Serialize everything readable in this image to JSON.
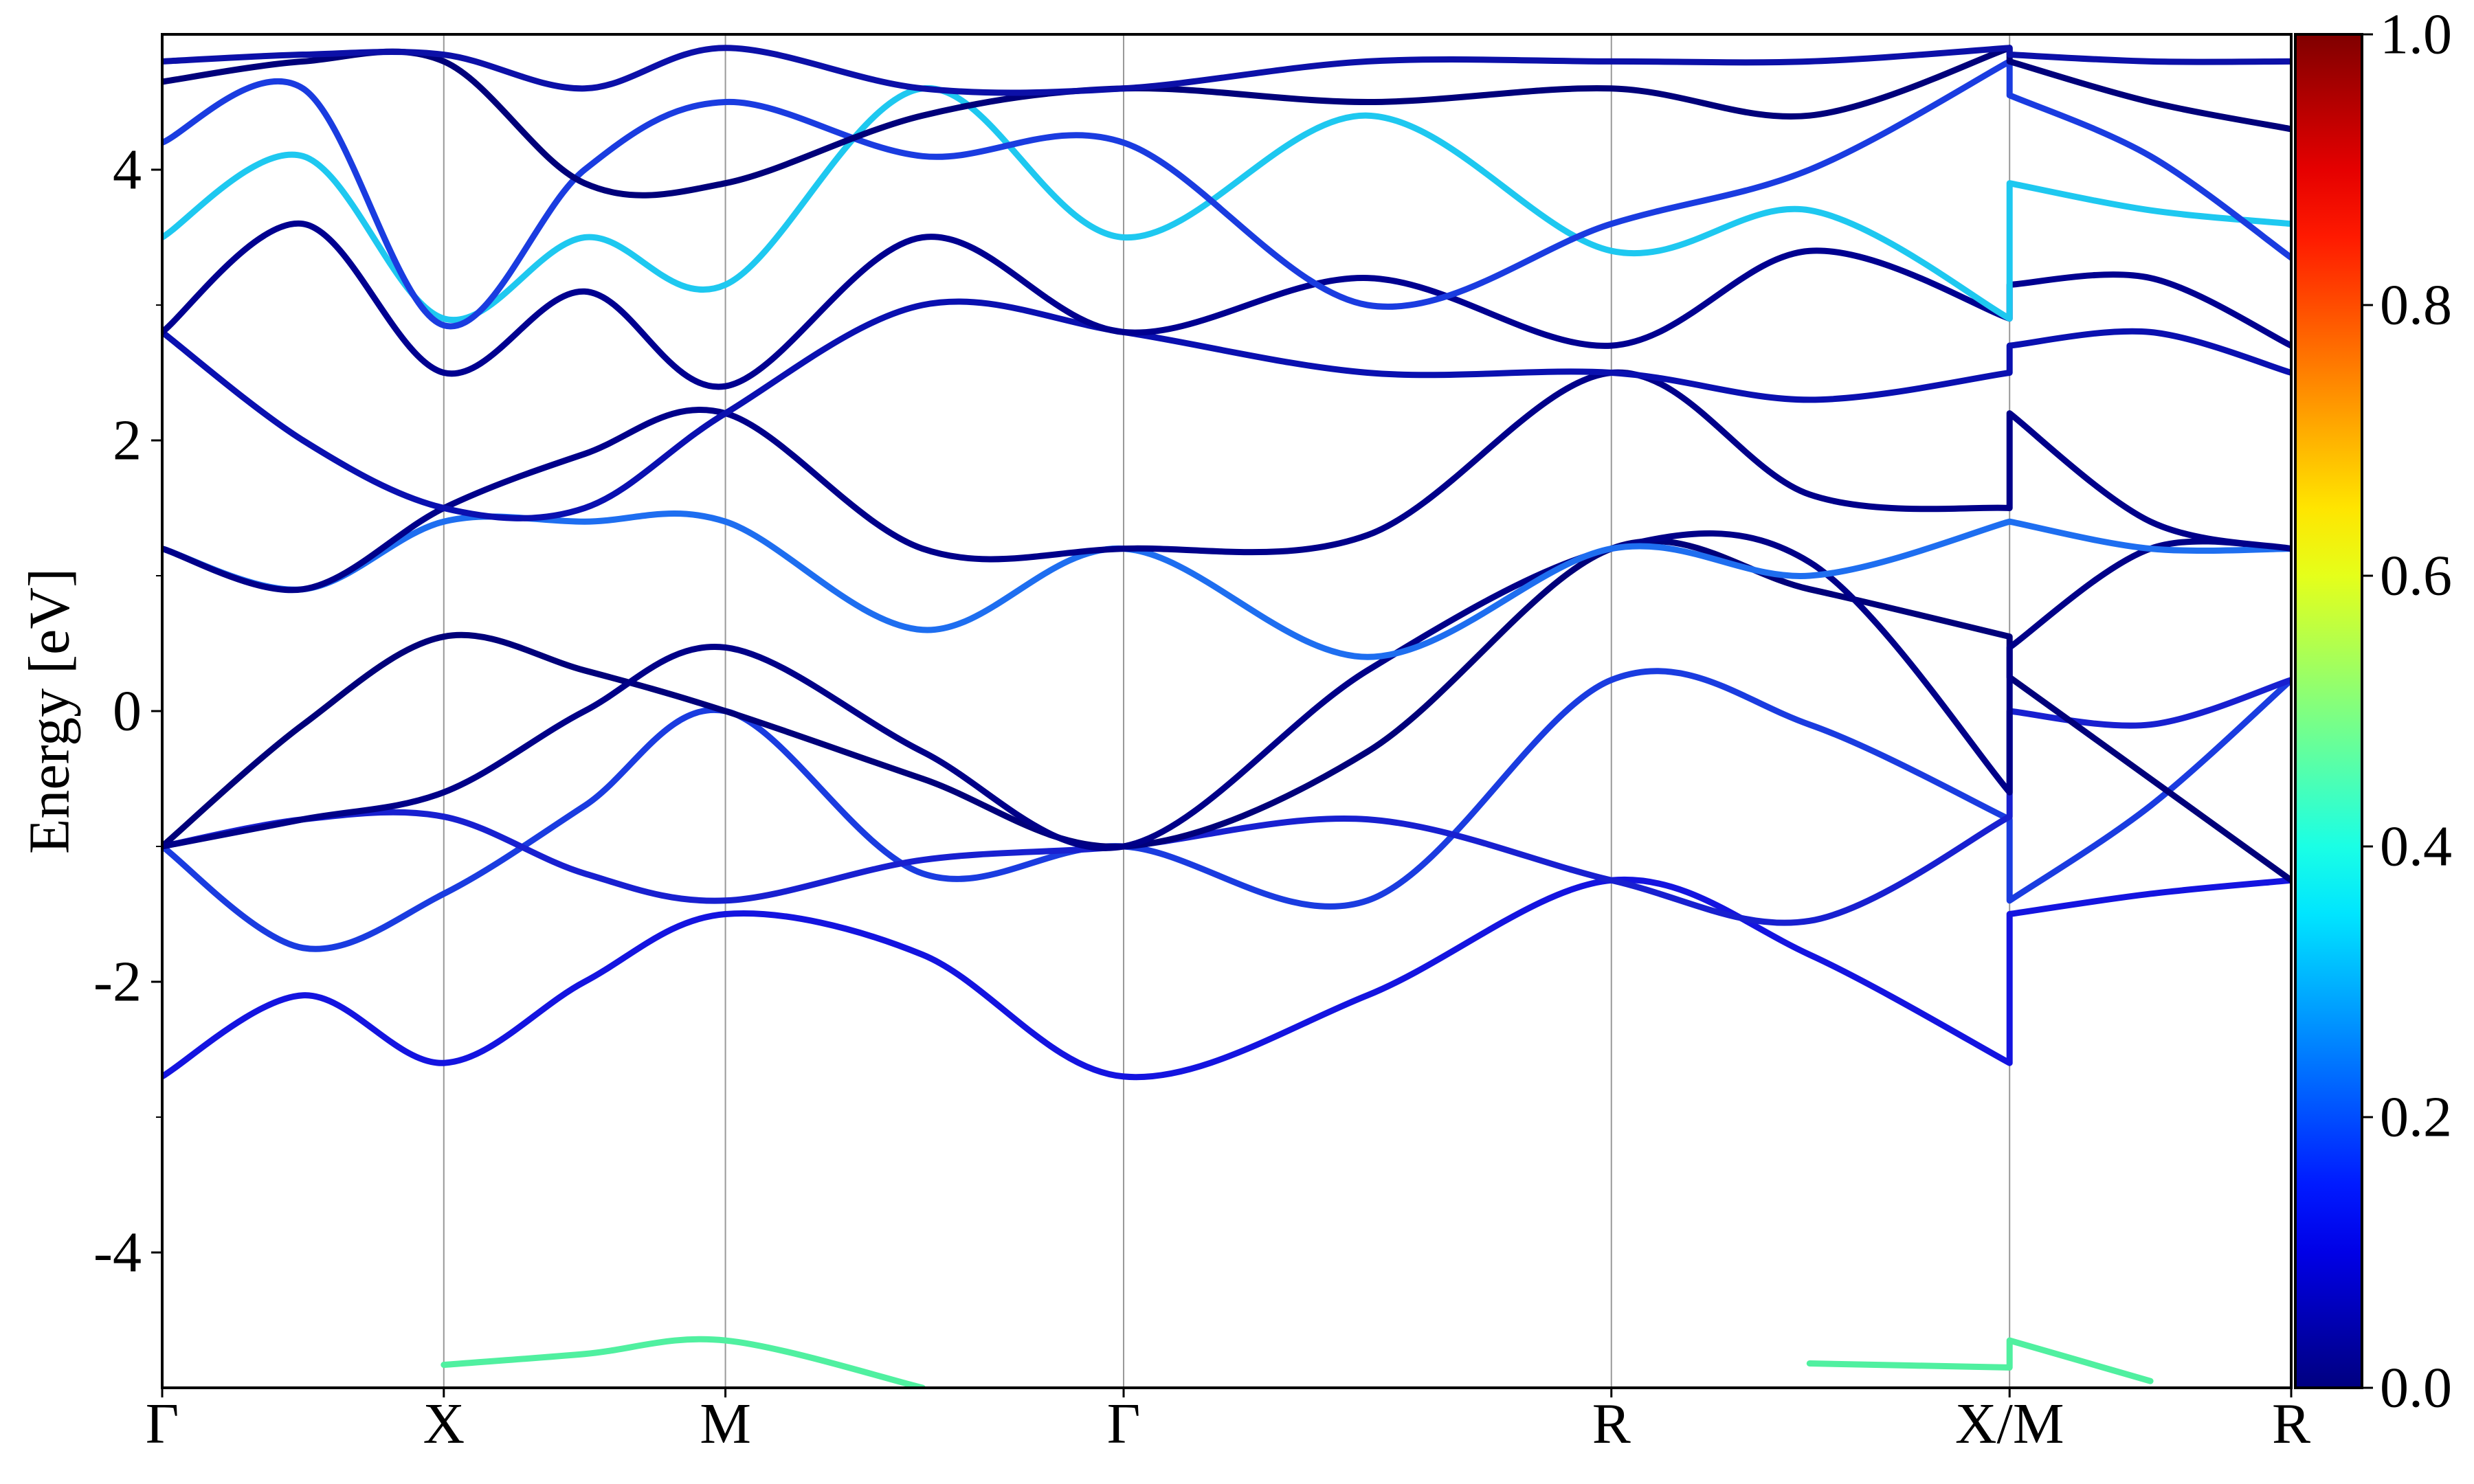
{
  "chart_data": {
    "type": "line",
    "y_label": "Energy [eV]",
    "x": [
      0,
      0.5,
      1,
      1.5,
      2,
      2.7,
      3.414,
      4.28,
      5.146,
      5.85,
      6.56,
      6.56,
      7.06,
      7.56
    ],
    "xlim": [
      0,
      7.56
    ],
    "xticks": [
      {
        "value": 0,
        "label": "Γ"
      },
      {
        "value": 1,
        "label": "X"
      },
      {
        "value": 2,
        "label": "M"
      },
      {
        "value": 3.414,
        "label": "Γ"
      },
      {
        "value": 5.146,
        "label": "R"
      },
      {
        "value": 6.56,
        "label": "X/M"
      },
      {
        "value": 7.56,
        "label": "R"
      }
    ],
    "ylim": [
      -5,
      5
    ],
    "yticks": [
      -4,
      -2,
      0,
      2,
      4
    ],
    "yminor": [
      -3,
      -1,
      1,
      3
    ],
    "grid": "x",
    "series": [
      {
        "color": "#1414e0",
        "values": [
          -2.7,
          -2.1,
          -2.6,
          -2.0,
          -1.5,
          -1.8,
          -2.7,
          -2.1,
          -1.25,
          -1.8,
          -2.6,
          -1.5,
          -1.35,
          -1.25
        ]
      },
      {
        "color": "#1a3ce0",
        "values": [
          -1.0,
          -1.75,
          -1.35,
          -0.7,
          0.0,
          -1.2,
          -1.0,
          -1.4,
          0.23,
          -0.1,
          -0.8,
          -1.4,
          -0.7,
          0.23
        ]
      },
      {
        "color": "#1820d0",
        "values": [
          -1.0,
          -0.8,
          -0.78,
          -1.2,
          -1.4,
          -1.1,
          -1.0,
          -0.8,
          -1.25,
          -1.55,
          -0.78,
          0.0,
          -0.1,
          0.23
        ]
      },
      {
        "color": "#00007a",
        "values": [
          -1.0,
          -0.1,
          0.55,
          0.3,
          0.0,
          -0.5,
          -1.0,
          -0.3,
          1.2,
          0.9,
          0.55,
          0.25,
          -0.5,
          -1.25
        ]
      },
      {
        "color": "#000088",
        "values": [
          -1.0,
          -0.8,
          -0.6,
          0.0,
          0.47,
          -0.3,
          -1.0,
          0.3,
          1.2,
          1.1,
          -0.6,
          0.47,
          1.2,
          1.2
        ]
      },
      {
        "color": "#1e6ef0",
        "values": [
          1.2,
          0.9,
          1.4,
          1.4,
          1.4,
          0.6,
          1.2,
          0.4,
          1.2,
          1.0,
          1.4,
          1.4,
          1.2,
          1.2
        ]
      },
      {
        "color": "#00008a",
        "values": [
          1.2,
          0.9,
          1.5,
          1.9,
          2.2,
          1.2,
          1.2,
          1.3,
          2.5,
          1.6,
          1.5,
          2.2,
          1.4,
          1.2
        ]
      },
      {
        "color": "#0a10b0",
        "values": [
          2.8,
          2.0,
          1.5,
          1.5,
          2.2,
          3.0,
          2.8,
          2.5,
          2.5,
          2.3,
          2.5,
          2.7,
          2.8,
          2.5
        ]
      },
      {
        "color": "#000090",
        "values": [
          2.8,
          3.6,
          2.5,
          3.1,
          2.4,
          3.5,
          2.8,
          3.2,
          2.7,
          3.4,
          2.9,
          3.15,
          3.2,
          2.7
        ]
      },
      {
        "color": "#1ec8f0",
        "values": [
          3.5,
          4.1,
          2.9,
          3.5,
          3.15,
          4.6,
          3.5,
          4.4,
          3.4,
          3.7,
          2.9,
          3.9,
          3.7,
          3.6
        ]
      },
      {
        "color": "#1a3ce0",
        "values": [
          4.2,
          4.6,
          2.85,
          4.0,
          4.5,
          4.1,
          4.2,
          3.0,
          3.6,
          4.0,
          4.8,
          4.55,
          4.1,
          3.35
        ]
      },
      {
        "color": "#00007a",
        "values": [
          4.65,
          4.8,
          4.8,
          3.9,
          3.9,
          4.4,
          4.6,
          4.5,
          4.6,
          4.4,
          4.9,
          4.8,
          4.5,
          4.3
        ]
      },
      {
        "color": "#0c10a8",
        "values": [
          4.8,
          4.85,
          4.85,
          4.6,
          4.9,
          4.6,
          4.6,
          4.8,
          4.8,
          4.8,
          4.9,
          4.85,
          4.8,
          4.8
        ]
      },
      {
        "color": "#50f0a0",
        "values": [
          null,
          null,
          -4.83,
          -4.75,
          -4.65,
          -5.0,
          null,
          null,
          null,
          -4.82,
          -4.85,
          -4.65,
          -4.95,
          null
        ]
      }
    ],
    "colorbar": {
      "colormap": "jet",
      "clim": [
        0,
        1
      ],
      "ticks": [
        {
          "value": 0,
          "label": "0.0"
        },
        {
          "value": 0.2,
          "label": "0.2"
        },
        {
          "value": 0.4,
          "label": "0.4"
        },
        {
          "value": 0.6,
          "label": "0.6"
        },
        {
          "value": 0.8,
          "label": "0.8"
        },
        {
          "value": 1,
          "label": "1.0"
        }
      ]
    }
  }
}
